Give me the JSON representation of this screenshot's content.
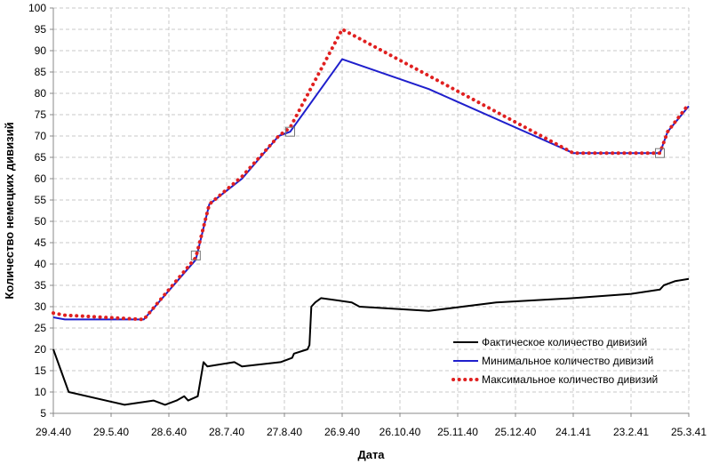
{
  "chart_data": {
    "type": "line",
    "title": "",
    "xlabel": "Дата",
    "ylabel": "Количество немецких дивизий",
    "ylim": [
      5,
      100
    ],
    "yticks": [
      5,
      10,
      15,
      20,
      25,
      30,
      35,
      40,
      45,
      50,
      55,
      60,
      65,
      70,
      75,
      80,
      85,
      90,
      95,
      100
    ],
    "xlim": [
      "1940-04-29",
      "1941-03-25"
    ],
    "xticks": [
      {
        "date": "1940-04-29",
        "label": "29.4.40"
      },
      {
        "date": "1940-05-29",
        "label": "29.5.40"
      },
      {
        "date": "1940-06-28",
        "label": "28.6.40"
      },
      {
        "date": "1940-07-28",
        "label": "28.7.40"
      },
      {
        "date": "1940-08-27",
        "label": "27.8.40"
      },
      {
        "date": "1940-09-26",
        "label": "26.9.40"
      },
      {
        "date": "1940-10-26",
        "label": "26.10.40"
      },
      {
        "date": "1940-11-25",
        "label": "25.11.40"
      },
      {
        "date": "1940-12-25",
        "label": "25.12.40"
      },
      {
        "date": "1941-01-24",
        "label": "24.1.41"
      },
      {
        "date": "1941-02-23",
        "label": "23.2.41"
      },
      {
        "date": "1941-03-25",
        "label": "25.3.41"
      }
    ],
    "grid": true,
    "legend_position": "bottom-right",
    "series": [
      {
        "name": "Фактическое количество дивизий",
        "color": "#000000",
        "style": "solid",
        "points": [
          [
            "1940-04-29",
            20
          ],
          [
            "1940-05-07",
            10
          ],
          [
            "1940-06-05",
            7
          ],
          [
            "1940-06-20",
            8
          ],
          [
            "1940-06-26",
            7
          ],
          [
            "1940-07-02",
            8
          ],
          [
            "1940-07-06",
            9
          ],
          [
            "1940-07-08",
            8
          ],
          [
            "1940-07-13",
            9
          ],
          [
            "1940-07-16",
            17
          ],
          [
            "1940-07-18",
            16
          ],
          [
            "1940-08-01",
            17
          ],
          [
            "1940-08-05",
            16
          ],
          [
            "1940-08-25",
            17
          ],
          [
            "1940-08-31",
            18
          ],
          [
            "1940-09-01",
            19
          ],
          [
            "1940-09-08",
            20
          ],
          [
            "1940-09-09",
            21
          ],
          [
            "1940-09-10",
            30
          ],
          [
            "1940-09-12",
            31
          ],
          [
            "1940-09-15",
            32
          ],
          [
            "1940-10-01",
            31
          ],
          [
            "1940-10-05",
            30
          ],
          [
            "1940-11-10",
            29
          ],
          [
            "1940-12-15",
            31
          ],
          [
            "1941-01-24",
            32
          ],
          [
            "1941-02-23",
            33
          ],
          [
            "1941-03-10",
            34
          ],
          [
            "1941-03-12",
            35
          ],
          [
            "1941-03-18",
            36
          ],
          [
            "1941-03-25",
            36.5
          ]
        ]
      },
      {
        "name": "Минимальное количество дивизий",
        "color": "#1f1fcc",
        "style": "solid",
        "points": [
          [
            "1940-04-29",
            27.5
          ],
          [
            "1940-05-05",
            27
          ],
          [
            "1940-06-15",
            27
          ],
          [
            "1940-07-12",
            41
          ],
          [
            "1940-07-19",
            54
          ],
          [
            "1940-08-05",
            60
          ],
          [
            "1940-08-24",
            70
          ],
          [
            "1940-08-30",
            71
          ],
          [
            "1940-09-26",
            88
          ],
          [
            "1940-11-10",
            81
          ],
          [
            "1941-01-24",
            66
          ],
          [
            "1941-03-10",
            66
          ],
          [
            "1941-03-14",
            71
          ],
          [
            "1941-03-25",
            77
          ]
        ]
      },
      {
        "name": "Максимальное количество дивизий",
        "color": "#e02020",
        "style": "dotted",
        "points": [
          [
            "1940-04-29",
            28.5
          ],
          [
            "1940-05-05",
            28
          ],
          [
            "1940-06-15",
            27
          ],
          [
            "1940-07-12",
            41.5
          ],
          [
            "1940-07-19",
            54
          ],
          [
            "1940-08-05",
            60.5
          ],
          [
            "1940-08-24",
            70
          ],
          [
            "1940-08-30",
            72
          ],
          [
            "1940-09-26",
            95
          ],
          [
            "1941-01-24",
            66
          ],
          [
            "1941-03-10",
            66
          ],
          [
            "1941-03-14",
            71
          ],
          [
            "1941-03-25",
            77.5
          ]
        ]
      }
    ],
    "markers": [
      {
        "date": "1940-07-12",
        "value": 42
      },
      {
        "date": "1940-08-30",
        "value": 71
      },
      {
        "date": "1941-03-10",
        "value": 66
      }
    ]
  }
}
